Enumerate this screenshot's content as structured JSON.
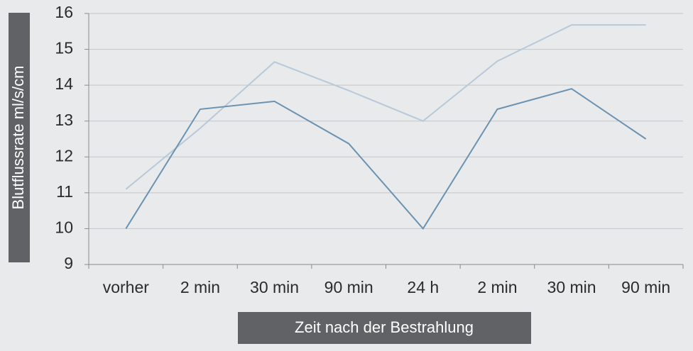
{
  "chart_data": {
    "type": "line",
    "y_label": "Blutflussrate ml/s/cm",
    "x_label": "Zeit nach der Bestrahlung",
    "categories": [
      "vorher",
      "2 min",
      "30 min",
      "90 min",
      "24 h",
      "2 min",
      "30 min",
      "90 min"
    ],
    "series": [
      {
        "color": "#6b93b1",
        "values": [
          10.0,
          13.33,
          13.55,
          12.37,
          10.0,
          13.33,
          13.9,
          12.5
        ]
      },
      {
        "color": "#b8c9d9",
        "values": [
          11.1,
          12.8,
          14.65,
          13.85,
          13.0,
          14.67,
          15.68,
          15.68
        ]
      }
    ],
    "ylim": [
      9,
      16
    ],
    "yticks": [
      9,
      10,
      11,
      12,
      13,
      14,
      15,
      16
    ],
    "grid": true
  }
}
